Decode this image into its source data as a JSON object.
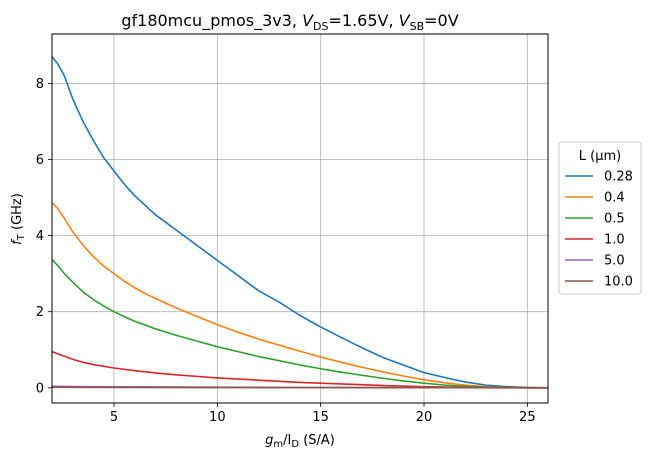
{
  "chart_data": {
    "type": "line",
    "title": {
      "device": "gf180mcu_pmos_3v3,",
      "vds_sym": "V",
      "vds_sub": "DS",
      "vds_val": "=1.65V,",
      "vsb_sym": "V",
      "vsb_sub": "SB",
      "vsb_val": "=0V"
    },
    "xlabel": {
      "g": "g",
      "g_sub": "m",
      "slash": "/I",
      "i_sub": "D",
      "unit": "(S/A)"
    },
    "ylabel": {
      "f": "f",
      "f_sub": "T",
      "unit": "(GHz)"
    },
    "xlim": [
      2,
      26
    ],
    "ylim": [
      -0.4,
      9.3
    ],
    "xticks": [
      5,
      10,
      15,
      20,
      25
    ],
    "yticks": [
      0,
      2,
      4,
      6,
      8
    ],
    "xtick_labels": [
      "5",
      "10",
      "15",
      "20",
      "25"
    ],
    "ytick_labels": [
      "0",
      "2",
      "4",
      "6",
      "8"
    ],
    "grid": true,
    "legend": {
      "title": "L (µm)",
      "placement": "outside-right"
    },
    "series": [
      {
        "name": "0.28",
        "color": "#1f77b4",
        "x": [
          2,
          2.3,
          2.6,
          3,
          3.5,
          4,
          4.5,
          5,
          5.5,
          6,
          6.5,
          7,
          8,
          9,
          10,
          11,
          12,
          13,
          14,
          15,
          16,
          17,
          18,
          19,
          20,
          21,
          22,
          23,
          24,
          25,
          26
        ],
        "y": [
          8.7,
          8.5,
          8.2,
          7.6,
          7.0,
          6.5,
          6.05,
          5.7,
          5.35,
          5.05,
          4.8,
          4.55,
          4.15,
          3.75,
          3.35,
          2.95,
          2.55,
          2.25,
          1.9,
          1.6,
          1.32,
          1.05,
          0.8,
          0.6,
          0.4,
          0.27,
          0.15,
          0.07,
          0.03,
          0.01,
          0.0
        ]
      },
      {
        "name": "0.4",
        "color": "#ff7f0e",
        "x": [
          2,
          2.3,
          2.6,
          3,
          3.5,
          4,
          4.5,
          5,
          5.5,
          6,
          6.5,
          7,
          8,
          9,
          10,
          11,
          12,
          13,
          14,
          15,
          16,
          17,
          18,
          19,
          20,
          21,
          22,
          23,
          24,
          25,
          26
        ],
        "y": [
          4.87,
          4.7,
          4.45,
          4.1,
          3.75,
          3.45,
          3.2,
          3.0,
          2.8,
          2.63,
          2.48,
          2.35,
          2.1,
          1.88,
          1.66,
          1.46,
          1.28,
          1.12,
          0.96,
          0.81,
          0.67,
          0.54,
          0.42,
          0.31,
          0.21,
          0.13,
          0.07,
          0.03,
          0.01,
          0.0,
          0.0
        ]
      },
      {
        "name": "0.5",
        "color": "#2ca02c",
        "x": [
          2,
          2.3,
          2.6,
          3,
          3.5,
          4,
          4.5,
          5,
          5.5,
          6,
          6.5,
          7,
          8,
          9,
          10,
          11,
          12,
          13,
          14,
          15,
          16,
          17,
          18,
          19,
          20,
          21,
          22,
          23,
          24,
          25,
          26
        ],
        "y": [
          3.37,
          3.2,
          3.0,
          2.78,
          2.52,
          2.32,
          2.15,
          2.0,
          1.87,
          1.75,
          1.65,
          1.55,
          1.38,
          1.23,
          1.08,
          0.95,
          0.82,
          0.71,
          0.6,
          0.5,
          0.41,
          0.33,
          0.25,
          0.18,
          0.12,
          0.07,
          0.04,
          0.02,
          0.01,
          0.0,
          0.0
        ]
      },
      {
        "name": "1.0",
        "color": "#d62728",
        "x": [
          2,
          2.5,
          3,
          3.5,
          4,
          5,
          6,
          7,
          8,
          9,
          10,
          12,
          14,
          16,
          18,
          20,
          22,
          24,
          26
        ],
        "y": [
          0.95,
          0.85,
          0.75,
          0.67,
          0.61,
          0.52,
          0.45,
          0.39,
          0.34,
          0.3,
          0.26,
          0.2,
          0.14,
          0.1,
          0.06,
          0.03,
          0.01,
          0.005,
          0.0
        ]
      },
      {
        "name": "5.0",
        "color": "#9467bd",
        "x": [
          2,
          4,
          6,
          10,
          14,
          18,
          22,
          26
        ],
        "y": [
          0.04,
          0.03,
          0.025,
          0.015,
          0.01,
          0.005,
          0.002,
          0.0
        ]
      },
      {
        "name": "10.0",
        "color": "#8c564b",
        "x": [
          2,
          4,
          6,
          10,
          14,
          18,
          22,
          26
        ],
        "y": [
          0.015,
          0.012,
          0.01,
          0.006,
          0.004,
          0.002,
          0.001,
          0.0
        ]
      }
    ]
  }
}
